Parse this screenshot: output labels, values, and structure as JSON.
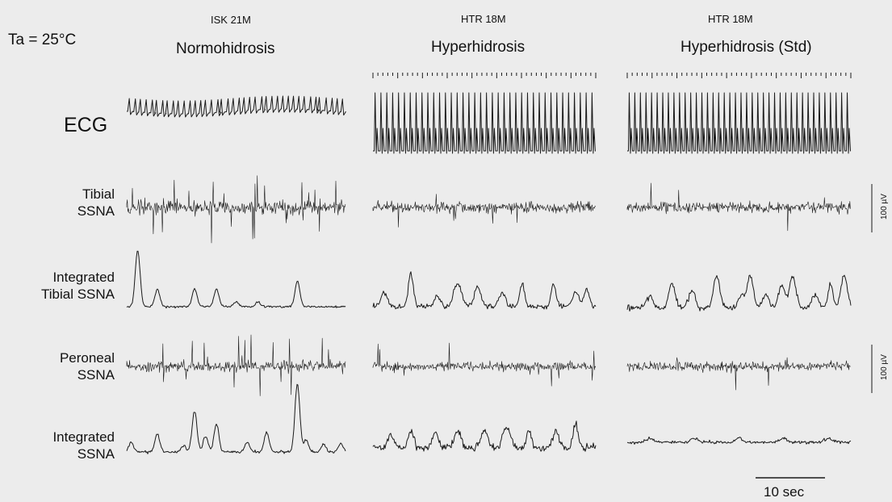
{
  "condition": "Ta = 25°C",
  "columns": [
    {
      "subject": "ISK 21M",
      "label": "Normohidrosis"
    },
    {
      "subject": "HTR 18M",
      "label": "Hyperhidrosis"
    },
    {
      "subject": "HTR 18M",
      "label": "Hyperhidrosis (Std)"
    }
  ],
  "rows": {
    "ecg": "ECG",
    "tibial": [
      "Tibial",
      "SSNA"
    ],
    "int_tibial": [
      "Integrated",
      "Tibial SSNA"
    ],
    "peroneal": [
      "Peroneal",
      "SSNA"
    ],
    "int_ssna": [
      "Integrated",
      "SSNA"
    ]
  },
  "scale_tibial": "100 µV",
  "scale_peroneal": "100 µV",
  "time_scale": "10 sec"
}
